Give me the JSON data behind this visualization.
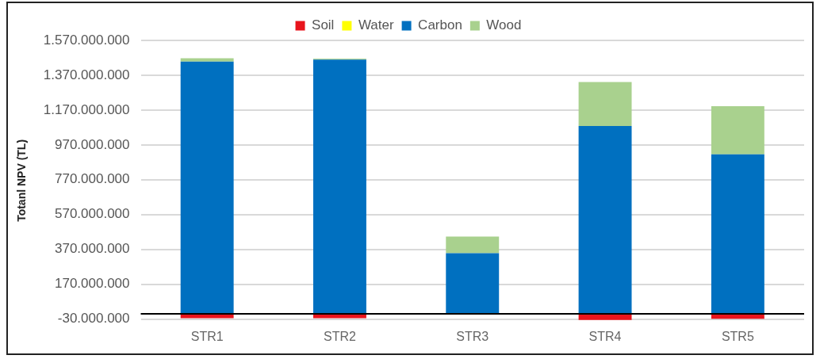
{
  "chart_data": {
    "type": "bar",
    "stacked": true,
    "ylabel": "Totanl NPV (TL)",
    "categories": [
      "STR1",
      "STR2",
      "STR3",
      "STR4",
      "STR5"
    ],
    "series": [
      {
        "name": "Soil",
        "color": "#e8141c",
        "values": [
          -25000000,
          -25000000,
          0,
          -35000000,
          -28000000
        ]
      },
      {
        "name": "Water",
        "color": "#ffff00",
        "values": [
          0,
          0,
          0,
          0,
          0
        ]
      },
      {
        "name": "Carbon",
        "color": "#0070c0",
        "values": [
          1448000000,
          1460000000,
          348000000,
          1079000000,
          916000000
        ]
      },
      {
        "name": "Wood",
        "color": "#a9d18e",
        "values": [
          20000000,
          5000000,
          96000000,
          252000000,
          276000000
        ]
      }
    ],
    "ylim": [
      -40000000,
      1570000000
    ],
    "yticks": [
      {
        "value": -30000000,
        "label": "-30.000.000"
      },
      {
        "value": 170000000,
        "label": "170.000.000"
      },
      {
        "value": 370000000,
        "label": "370.000.000"
      },
      {
        "value": 570000000,
        "label": "570.000.000"
      },
      {
        "value": 770000000,
        "label": "770.000.000"
      },
      {
        "value": 970000000,
        "label": "970.000.000"
      },
      {
        "value": 1170000000,
        "label": "1.170.000.000"
      },
      {
        "value": 1370000000,
        "label": "1.370.000.000"
      },
      {
        "value": 1570000000,
        "label": "1.570.000.000"
      }
    ],
    "ref_lines": [
      {
        "axis": "y",
        "value": 0,
        "color": "#000000"
      }
    ],
    "grid": "y",
    "legend": "top"
  }
}
